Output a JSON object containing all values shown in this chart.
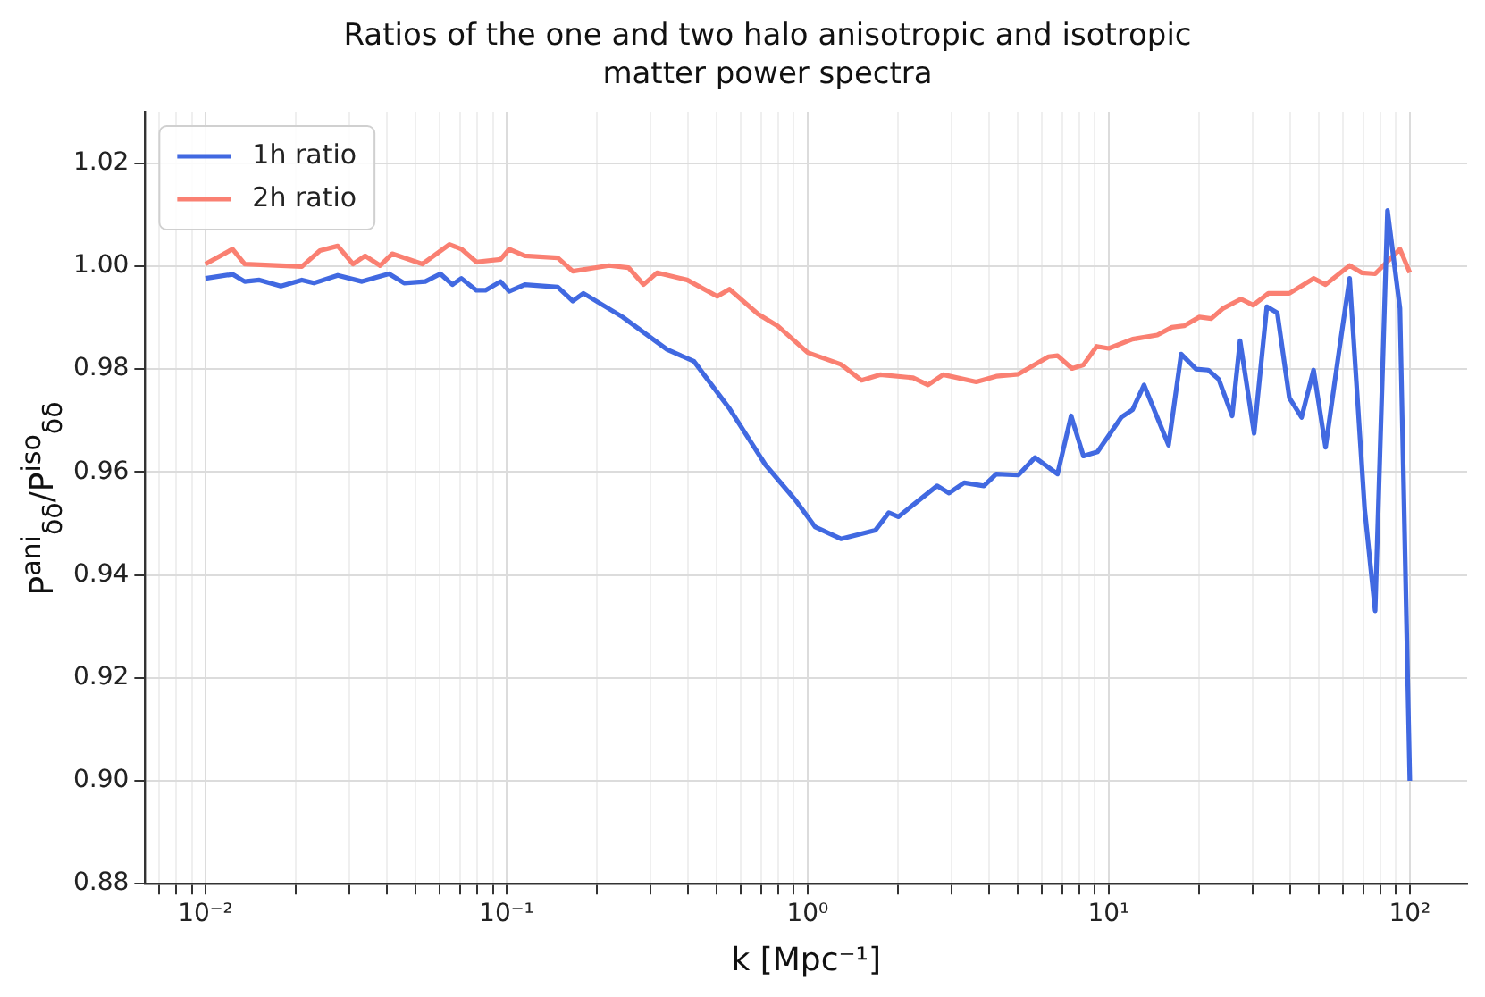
{
  "chart_data": {
    "type": "line",
    "title": "Ratios of the one and two halo anisotropic and isotropic\nmatter power spectra",
    "xlabel": "k [Mpc⁻¹]",
    "ylabel": "P$^{ani}$$_{δδ}$/P$^{iso}$$_{δδ}$",
    "log": "x",
    "xlim": [
      0.0063,
      155
    ],
    "ylim": [
      0.88,
      1.03
    ],
    "xticks": [
      {
        "value": 0.007,
        "label": null
      },
      {
        "value": 0.008,
        "label": null
      },
      {
        "value": 0.009,
        "label": null
      },
      {
        "value": 0.01,
        "label": "10⁻²"
      },
      {
        "value": 0.02,
        "label": null
      },
      {
        "value": 0.03,
        "label": null
      },
      {
        "value": 0.04,
        "label": null
      },
      {
        "value": 0.05,
        "label": null
      },
      {
        "value": 0.06,
        "label": null
      },
      {
        "value": 0.07,
        "label": null
      },
      {
        "value": 0.08,
        "label": null
      },
      {
        "value": 0.09,
        "label": null
      },
      {
        "value": 0.1,
        "label": "10⁻¹"
      },
      {
        "value": 0.2,
        "label": null
      },
      {
        "value": 0.3,
        "label": null
      },
      {
        "value": 0.4,
        "label": null
      },
      {
        "value": 0.5,
        "label": null
      },
      {
        "value": 0.6,
        "label": null
      },
      {
        "value": 0.7,
        "label": null
      },
      {
        "value": 0.8,
        "label": null
      },
      {
        "value": 0.9,
        "label": null
      },
      {
        "value": 1,
        "label": "10⁰"
      },
      {
        "value": 2,
        "label": null
      },
      {
        "value": 3,
        "label": null
      },
      {
        "value": 4,
        "label": null
      },
      {
        "value": 5,
        "label": null
      },
      {
        "value": 6,
        "label": null
      },
      {
        "value": 7,
        "label": null
      },
      {
        "value": 8,
        "label": null
      },
      {
        "value": 9,
        "label": null
      },
      {
        "value": 10,
        "label": "10¹"
      },
      {
        "value": 20,
        "label": null
      },
      {
        "value": 30,
        "label": null
      },
      {
        "value": 40,
        "label": null
      },
      {
        "value": 50,
        "label": null
      },
      {
        "value": 60,
        "label": null
      },
      {
        "value": 70,
        "label": null
      },
      {
        "value": 80,
        "label": null
      },
      {
        "value": 90,
        "label": null
      },
      {
        "value": 100,
        "label": "10²"
      }
    ],
    "yticks": [
      {
        "value": 0.88,
        "label": "0.88"
      },
      {
        "value": 0.9,
        "label": "0.90"
      },
      {
        "value": 0.92,
        "label": "0.92"
      },
      {
        "value": 0.94,
        "label": "0.94"
      },
      {
        "value": 0.96,
        "label": "0.96"
      },
      {
        "value": 0.98,
        "label": "0.98"
      },
      {
        "value": 1,
        "label": "1.00"
      },
      {
        "value": 1.02,
        "label": "1.02"
      }
    ],
    "grid": true,
    "legend": "top left",
    "marker": "none",
    "line_style": "solid",
    "series": [
      {
        "name": "1h ratio",
        "color": "#4169e1",
        "x": [
          0.01,
          0.0123,
          0.0135,
          0.0151,
          0.0178,
          0.0209,
          0.0229,
          0.0275,
          0.0331,
          0.0407,
          0.0457,
          0.0537,
          0.0603,
          0.0661,
          0.0708,
          0.0794,
          0.0851,
          0.0955,
          0.102,
          0.115,
          0.148,
          0.166,
          0.18,
          0.243,
          0.341,
          0.419,
          0.55,
          0.724,
          0.912,
          1.06,
          1.29,
          1.68,
          1.86,
          2,
          2.69,
          2.95,
          3.31,
          3.85,
          4.23,
          5.01,
          5.69,
          6.76,
          7.5,
          8.24,
          9.18,
          11,
          12,
          13.1,
          15.8,
          17.4,
          19.5,
          21.4,
          23.2,
          25.7,
          27.3,
          30.4,
          33.5,
          36.3,
          39.8,
          43.7,
          47.9,
          52.5,
          58.5,
          63.1,
          70.8,
          76.7,
          84.3,
          92.7,
          100
        ],
        "values": [
          0.9976,
          0.9984,
          0.997,
          0.9973,
          0.9961,
          0.9973,
          0.9967,
          0.9982,
          0.997,
          0.9985,
          0.9967,
          0.997,
          0.9985,
          0.9964,
          0.9976,
          0.9953,
          0.9953,
          0.997,
          0.9951,
          0.9964,
          0.9959,
          0.9932,
          0.9947,
          0.9901,
          0.9838,
          0.9815,
          0.9723,
          0.9614,
          0.9545,
          0.9493,
          0.947,
          0.9487,
          0.9521,
          0.9513,
          0.9573,
          0.9559,
          0.9579,
          0.9573,
          0.9596,
          0.9594,
          0.9628,
          0.9596,
          0.9709,
          0.9631,
          0.9639,
          0.9706,
          0.9721,
          0.9769,
          0.9652,
          0.9829,
          0.98,
          0.9798,
          0.978,
          0.9709,
          0.9855,
          0.9675,
          0.9921,
          0.9909,
          0.9744,
          0.9706,
          0.9798,
          0.9648,
          0.9844,
          0.9976,
          0.9527,
          0.933,
          1.0108,
          0.9918,
          0.9
        ]
      },
      {
        "name": "2h ratio",
        "color": "#fa8072",
        "x": [
          0.01,
          0.0123,
          0.0135,
          0.0209,
          0.024,
          0.0275,
          0.0309,
          0.0339,
          0.038,
          0.0417,
          0.0525,
          0.0646,
          0.0708,
          0.0794,
          0.0955,
          0.102,
          0.115,
          0.148,
          0.166,
          0.219,
          0.254,
          0.285,
          0.316,
          0.398,
          0.501,
          0.55,
          0.684,
          0.794,
          1,
          1.29,
          1.51,
          1.74,
          2.24,
          2.51,
          2.82,
          3.63,
          4.23,
          5.01,
          6.31,
          6.76,
          7.55,
          8.24,
          9.12,
          10,
          12,
          14.5,
          16.2,
          17.8,
          20,
          21.9,
          24,
          27.5,
          30.2,
          33.9,
          39.8,
          47.9,
          52.5,
          63.1,
          69.2,
          76.7,
          92.7,
          100
        ],
        "values": [
          1.0004,
          1.0033,
          1.0004,
          0.9999,
          1.003,
          1.0039,
          1.0004,
          1.002,
          1.0001,
          1.0024,
          1.0004,
          1.0042,
          1.0033,
          1.0008,
          1.0013,
          1.0033,
          1.002,
          1.0016,
          0.999,
          1.0001,
          0.9997,
          0.9964,
          0.9987,
          0.9973,
          0.9941,
          0.9955,
          0.9907,
          0.9884,
          0.9832,
          0.9809,
          0.9778,
          0.9789,
          0.9783,
          0.9769,
          0.9789,
          0.9775,
          0.9786,
          0.979,
          0.9824,
          0.9826,
          0.9801,
          0.9808,
          0.9844,
          0.984,
          0.9858,
          0.9866,
          0.9881,
          0.9884,
          0.9901,
          0.9898,
          0.9918,
          0.9936,
          0.9924,
          0.9947,
          0.9947,
          0.9976,
          0.9964,
          1.0001,
          0.9987,
          0.9985,
          1.0033,
          0.9987
        ]
      }
    ]
  }
}
